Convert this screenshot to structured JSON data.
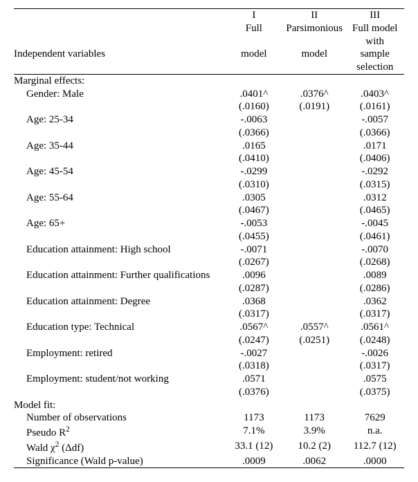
{
  "header": {
    "rowLabel": "Independent variables",
    "cols": [
      {
        "num": "I",
        "l1": "Full",
        "l2": "model"
      },
      {
        "num": "II",
        "l1": "Parsimonious",
        "l2": "model"
      },
      {
        "num": "III",
        "l1": "Full model with",
        "l2": "sample selection"
      }
    ]
  },
  "sectionA": "Marginal effects:",
  "rows": [
    {
      "label": "Gender: Male",
      "a": ".0401^",
      "sa": "(.0160)",
      "b": ".0376^",
      "sb": "(.0191)",
      "c": ".0403^",
      "sc": "(.0161)"
    },
    {
      "label": "Age: 25-34",
      "a": "-.0063",
      "sa": "(.0366)",
      "b": "",
      "sb": "",
      "c": "-.0057",
      "sc": "(.0366)"
    },
    {
      "label": "Age: 35-44",
      "a": ".0165",
      "sa": "(.0410)",
      "b": "",
      "sb": "",
      "c": ".0171",
      "sc": "(.0406)"
    },
    {
      "label": "Age: 45-54",
      "a": "-.0299",
      "sa": "(.0310)",
      "b": "",
      "sb": "",
      "c": "-.0292",
      "sc": "(.0315)"
    },
    {
      "label": "Age: 55-64",
      "a": ".0305",
      "sa": "(.0467)",
      "b": "",
      "sb": "",
      "c": ".0312",
      "sc": "(.0465)"
    },
    {
      "label": "Age: 65+",
      "a": "-.0053",
      "sa": "(.0455)",
      "b": "",
      "sb": "",
      "c": "-.0045",
      "sc": "(.0461)"
    },
    {
      "label": "Education attainment: High school",
      "a": "-.0071",
      "sa": "(.0267)",
      "b": "",
      "sb": "",
      "c": "-.0070",
      "sc": "(.0268)"
    },
    {
      "label": "Education attainment: Further qualifications",
      "a": ".0096",
      "sa": "(.0287)",
      "b": "",
      "sb": "",
      "c": ".0089",
      "sc": "(.0286)"
    },
    {
      "label": "Education attainment: Degree",
      "a": ".0368",
      "sa": "(.0317)",
      "b": "",
      "sb": "",
      "c": ".0362",
      "sc": "(.0317)"
    },
    {
      "label": "Education type: Technical",
      "a": ".0567^",
      "sa": "(.0247)",
      "b": ".0557^",
      "sb": "(.0251)",
      "c": ".0561^",
      "sc": "(.0248)"
    },
    {
      "label": "Employment: retired",
      "a": "-.0027",
      "sa": "(.0318)",
      "b": "",
      "sb": "",
      "c": "-.0026",
      "sc": "(.0317)"
    },
    {
      "label": "Employment: student/not working",
      "a": ".0571",
      "sa": "(.0376)",
      "b": "",
      "sb": "",
      "c": ".0575",
      "sc": "(.0375)"
    }
  ],
  "sectionB": "Model fit:",
  "fit": [
    {
      "label": "Number of observations",
      "a": "1173",
      "b": "1173",
      "c": "7629"
    },
    {
      "label": "Pseudo R",
      "sup": "2",
      "a": "7.1%",
      "b": "3.9%",
      "c": "n.a."
    },
    {
      "label": "Wald χ",
      "sup": "2",
      "tail": " (Δdf)",
      "a": "33.1 (12)",
      "b": "10.2 (2)",
      "c": "112.7 (12)"
    },
    {
      "label": "Significance (Wald p-value)",
      "a": ".0009",
      "b": ".0062",
      "c": ".0000"
    }
  ]
}
